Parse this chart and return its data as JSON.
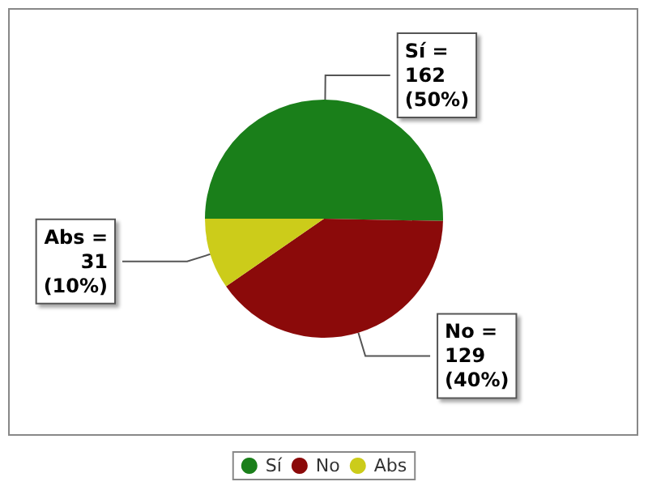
{
  "chart_data": {
    "type": "pie",
    "categories": [
      "Sí",
      "No",
      "Abs"
    ],
    "values": [
      162,
      129,
      31
    ],
    "colors": [
      "#1a7f1a",
      "#8b0a0a",
      "#cccc1a"
    ],
    "value_labels": [
      "Sí =\n162\n(50%)",
      "No =\n129\n(40%)",
      "Abs =\n31\n(10%)"
    ],
    "legend": "bottom"
  }
}
